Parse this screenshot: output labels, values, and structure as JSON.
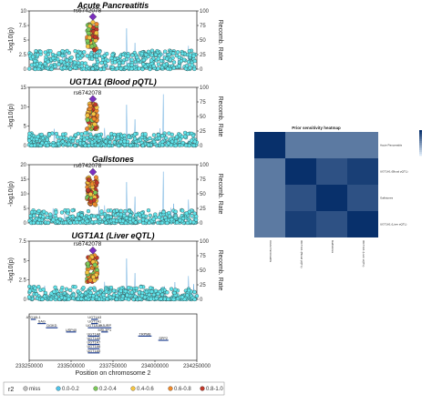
{
  "chart_data": [
    {
      "type": "scatter",
      "panel": "locuszoom",
      "title": "Acute Pancreatitis",
      "ylabel": "-log10(p)",
      "y2label": "Recomb. Rate",
      "ylim": [
        0,
        10
      ],
      "y2lim": [
        0,
        100
      ],
      "yticks": [
        "0",
        "2.5",
        "5",
        "7.5",
        "10"
      ],
      "y2ticks": [
        "0",
        "25",
        "50",
        "75",
        "100"
      ],
      "lead_snp": "rs6742078",
      "lead_snp_neglog10p": 9.0,
      "recomb_peaks": [
        {
          "x": 233700000,
          "rate": 30
        },
        {
          "x": 233830000,
          "rate": 70
        },
        {
          "x": 233880000,
          "rate": 45
        },
        {
          "x": 234050000,
          "rate": 88
        },
        {
          "x": 234200000,
          "rate": 40
        }
      ]
    },
    {
      "type": "scatter",
      "panel": "locuszoom",
      "title": "UGT1A1 (Blood pQTL)",
      "ylabel": "-log10(p)",
      "y2label": "Recomb. Rate",
      "ylim": [
        0,
        15
      ],
      "y2lim": [
        0,
        100
      ],
      "yticks": [
        "0",
        "5",
        "10",
        "15"
      ],
      "y2ticks": [
        "0",
        "25",
        "50",
        "75",
        "100"
      ],
      "lead_snp": "rs6742078",
      "lead_snp_neglog10p": 12.0,
      "recomb_peaks": [
        {
          "x": 233700000,
          "rate": 30
        },
        {
          "x": 233830000,
          "rate": 70
        },
        {
          "x": 233880000,
          "rate": 45
        },
        {
          "x": 234050000,
          "rate": 88
        },
        {
          "x": 234200000,
          "rate": 40
        }
      ]
    },
    {
      "type": "scatter",
      "panel": "locuszoom",
      "title": "Gallstones",
      "ylabel": "-log10(p)",
      "y2label": "Recomb. Rate",
      "ylim": [
        0,
        20
      ],
      "y2lim": [
        0,
        100
      ],
      "yticks": [
        "0",
        "5",
        "10",
        "15",
        "20"
      ],
      "y2ticks": [
        "0",
        "25",
        "50",
        "75",
        "100"
      ],
      "lead_snp": "rs6742078",
      "lead_snp_neglog10p": 17.5,
      "recomb_peaks": [
        {
          "x": 233700000,
          "rate": 30
        },
        {
          "x": 233830000,
          "rate": 70
        },
        {
          "x": 233880000,
          "rate": 45
        },
        {
          "x": 234050000,
          "rate": 88
        },
        {
          "x": 234200000,
          "rate": 40
        }
      ]
    },
    {
      "type": "scatter",
      "panel": "locuszoom",
      "title": "UGT1A1 (Liver eQTL)",
      "ylabel": "-log10(p)",
      "y2label": "Recomb. Rate",
      "ylim": [
        0,
        7.5
      ],
      "y2lim": [
        0,
        100
      ],
      "yticks": [
        "0",
        "2.5",
        "5",
        "7.5"
      ],
      "y2ticks": [
        "0",
        "25",
        "50",
        "75",
        "100"
      ],
      "lead_snp": "rs6742078",
      "lead_snp_neglog10p": 6.3,
      "recomb_peaks": [
        {
          "x": 233700000,
          "rate": 30
        },
        {
          "x": 233830000,
          "rate": 70
        },
        {
          "x": 233880000,
          "rate": 45
        },
        {
          "x": 234050000,
          "rate": 88
        },
        {
          "x": 234200000,
          "rate": 40
        }
      ]
    },
    {
      "type": "heatmap",
      "title": "Prior sensitivity heatmap",
      "rows": [
        "Acute Pancreatitis",
        "UGT1A1 (Blood pQTL)",
        "Gallstones",
        "UGT1A1 (Liver eQTL)"
      ],
      "columns": [
        "Acute Pancreatitis",
        "UGT1A1 (Blood pQTL)",
        "Gallstones",
        "UGT1A1 (Liver eQTL)"
      ],
      "values": [
        [
          1.0,
          0.6,
          0.6,
          0.6
        ],
        [
          0.6,
          1.0,
          0.82,
          0.92
        ],
        [
          0.6,
          0.82,
          1.0,
          0.82
        ],
        [
          0.6,
          0.92,
          0.82,
          1.0
        ]
      ],
      "color_scale": {
        "low": "#dbe8f5",
        "high": "#08306b"
      }
    }
  ],
  "shared_x": {
    "xlabel": "Position on chromosome 2",
    "xlim": [
      233250000,
      234250000
    ],
    "xticks": [
      233250000,
      233500000,
      233750000,
      234000000,
      234250000
    ],
    "xtick_labels": [
      "233250000",
      "233500000",
      "233750000",
      "234000000",
      "234250000"
    ]
  },
  "genes": [
    {
      "name": "ATG16L1",
      "start": 233260000,
      "end": 233290000,
      "row": 0
    },
    {
      "name": "SAG",
      "start": 233300000,
      "end": 233350000,
      "row": 1
    },
    {
      "name": "DGKD",
      "start": 233350000,
      "end": 233420000,
      "row": 2
    },
    {
      "name": "USP40",
      "start": 233470000,
      "end": 233530000,
      "row": 3
    },
    {
      "name": "UGT1A3",
      "start": 233620000,
      "end": 233660000,
      "row": 0
    },
    {
      "name": "UGT1A1",
      "start": 233620000,
      "end": 233660000,
      "row": 1
    },
    {
      "name": "UGT1A10",
      "start": 233600000,
      "end": 233670000,
      "row": 2
    },
    {
      "name": "UGT1A8",
      "start": 233600000,
      "end": 233670000,
      "row": 4
    },
    {
      "name": "UGT1A9",
      "start": 233600000,
      "end": 233670000,
      "row": 5
    },
    {
      "name": "UGT1A7",
      "start": 233600000,
      "end": 233670000,
      "row": 6
    },
    {
      "name": "UGT1A6",
      "start": 233600000,
      "end": 233670000,
      "row": 7
    },
    {
      "name": "UGT1A5",
      "start": 233600000,
      "end": 233670000,
      "row": 8
    },
    {
      "name": "HJURP",
      "start": 233670000,
      "end": 233740000,
      "row": 2
    },
    {
      "name": "MSL3P1",
      "start": 233680000,
      "end": 233720000,
      "row": 3
    },
    {
      "name": "TRPM8",
      "start": 233900000,
      "end": 233980000,
      "row": 4
    },
    {
      "name": "SPP2",
      "start": 234020000,
      "end": 234080000,
      "row": 5
    }
  ],
  "legend": {
    "title": "r2",
    "items": [
      {
        "label": "miss",
        "color": "#bfbfbf"
      },
      {
        "label": "0.0-0.2",
        "color": "#4fc3e8"
      },
      {
        "label": "0.2-0.4",
        "color": "#7cc95a"
      },
      {
        "label": "0.4-0.6",
        "color": "#f5c542"
      },
      {
        "label": "0.6-0.8",
        "color": "#ef8a2c"
      },
      {
        "label": "0.8-1.0",
        "color": "#c0392b"
      }
    ]
  },
  "colors": {
    "point_low": "#5fe3ea",
    "point_outline": "#1e1e1e",
    "lead_snp": "#7b2fbf",
    "recomb_line": "#6aaee0"
  }
}
